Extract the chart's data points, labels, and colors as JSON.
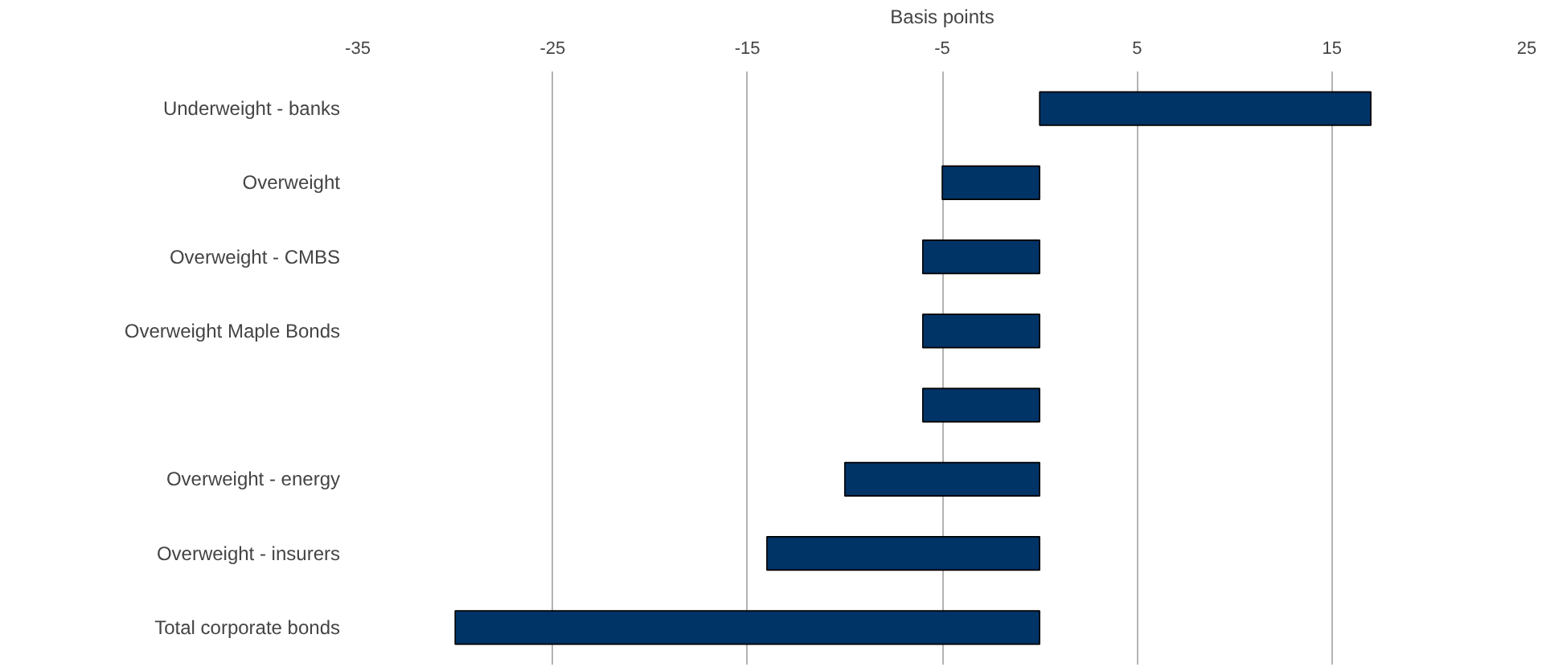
{
  "chart_data": {
    "type": "bar",
    "orientation": "horizontal",
    "xlabel": "Basis points",
    "categories": [
      "Underweight - banks",
      "Overweight",
      "Overweight - CMBS",
      "Overweight Maple Bonds",
      null,
      "Overweight - energy",
      "Overweight - insurers",
      "Total corporate bonds"
    ],
    "values": [
      17,
      -5,
      -6,
      -6,
      -6,
      -10,
      -14,
      -30
    ],
    "color": "#003366",
    "xlim": [
      -35,
      25
    ],
    "xticks": [
      -35,
      -25,
      -15,
      -5,
      5,
      15,
      25
    ],
    "grid": "x"
  }
}
